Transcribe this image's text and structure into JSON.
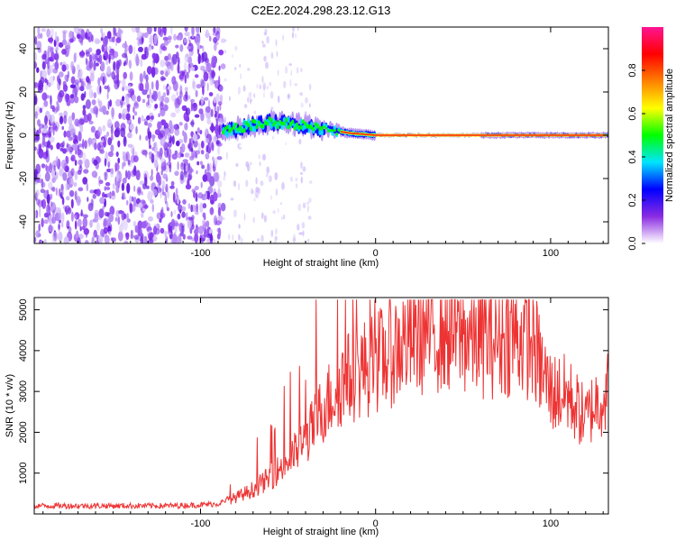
{
  "title": "C2E2.2024.298.23.12.G13",
  "chart_data": [
    {
      "type": "heatmap",
      "xlabel": "Height of straight line (km)",
      "ylabel": "Frequency (Hz)",
      "xlim": [
        -195,
        133
      ],
      "ylim": [
        -50,
        50
      ],
      "xticks": [
        -100,
        0,
        100
      ],
      "yticks": [
        -40,
        -20,
        0,
        20,
        40
      ],
      "colorbar": {
        "label": "Normalized spectral amplitude",
        "range": [
          0,
          1
        ],
        "ticks": [
          0,
          0.2,
          0.4,
          0.6,
          0.8
        ],
        "tick_labels": [
          "0.0",
          "0.2",
          "0.4",
          "0.6",
          "0.8"
        ],
        "colors": [
          "#ffffff",
          "#8a2be2",
          "#0000ff",
          "#00e5ff",
          "#00ff00",
          "#ffff00",
          "#ff8000",
          "#ff0000",
          "#ff1493"
        ]
      },
      "features": {
        "noise_region_x": [
          -195,
          -87
        ],
        "onset_x": -87,
        "signal_band": [
          {
            "x": -87,
            "freq": 1.5
          },
          {
            "x": -75,
            "freq": 4
          },
          {
            "x": -60,
            "freq": 6
          },
          {
            "x": -45,
            "freq": 5
          },
          {
            "x": -30,
            "freq": 3
          },
          {
            "x": -15,
            "freq": 1
          },
          {
            "x": 0,
            "freq": 0
          },
          {
            "x": 133,
            "freq": 0
          }
        ]
      },
      "grid": false
    },
    {
      "type": "line",
      "xlabel": "Height of straight line (km)",
      "ylabel": "SNR (10 * v/v)",
      "xlim": [
        -195,
        133
      ],
      "ylim": [
        0,
        5300
      ],
      "xticks": [
        -100,
        0,
        100
      ],
      "yticks": [
        1000,
        2000,
        3000,
        4000,
        5000
      ],
      "color": "#ee3333",
      "series": [
        {
          "x": [
            -195,
            -180,
            -160,
            -140,
            -120,
            -100,
            -90,
            -80,
            -70,
            -60,
            -50,
            -40,
            -30,
            -20,
            -10,
            0,
            10,
            20,
            30,
            40,
            50,
            60,
            70,
            80,
            90,
            95,
            100,
            110,
            115,
            120,
            125,
            133
          ],
          "y": [
            200,
            200,
            200,
            200,
            200,
            220,
            250,
            400,
            600,
            900,
            1300,
            1800,
            2600,
            3200,
            3500,
            3700,
            4000,
            4300,
            4500,
            4500,
            4400,
            4300,
            4300,
            4400,
            4200,
            3500,
            3000,
            2900,
            2600,
            2300,
            2700,
            3000
          ]
        }
      ],
      "grid": false
    }
  ]
}
